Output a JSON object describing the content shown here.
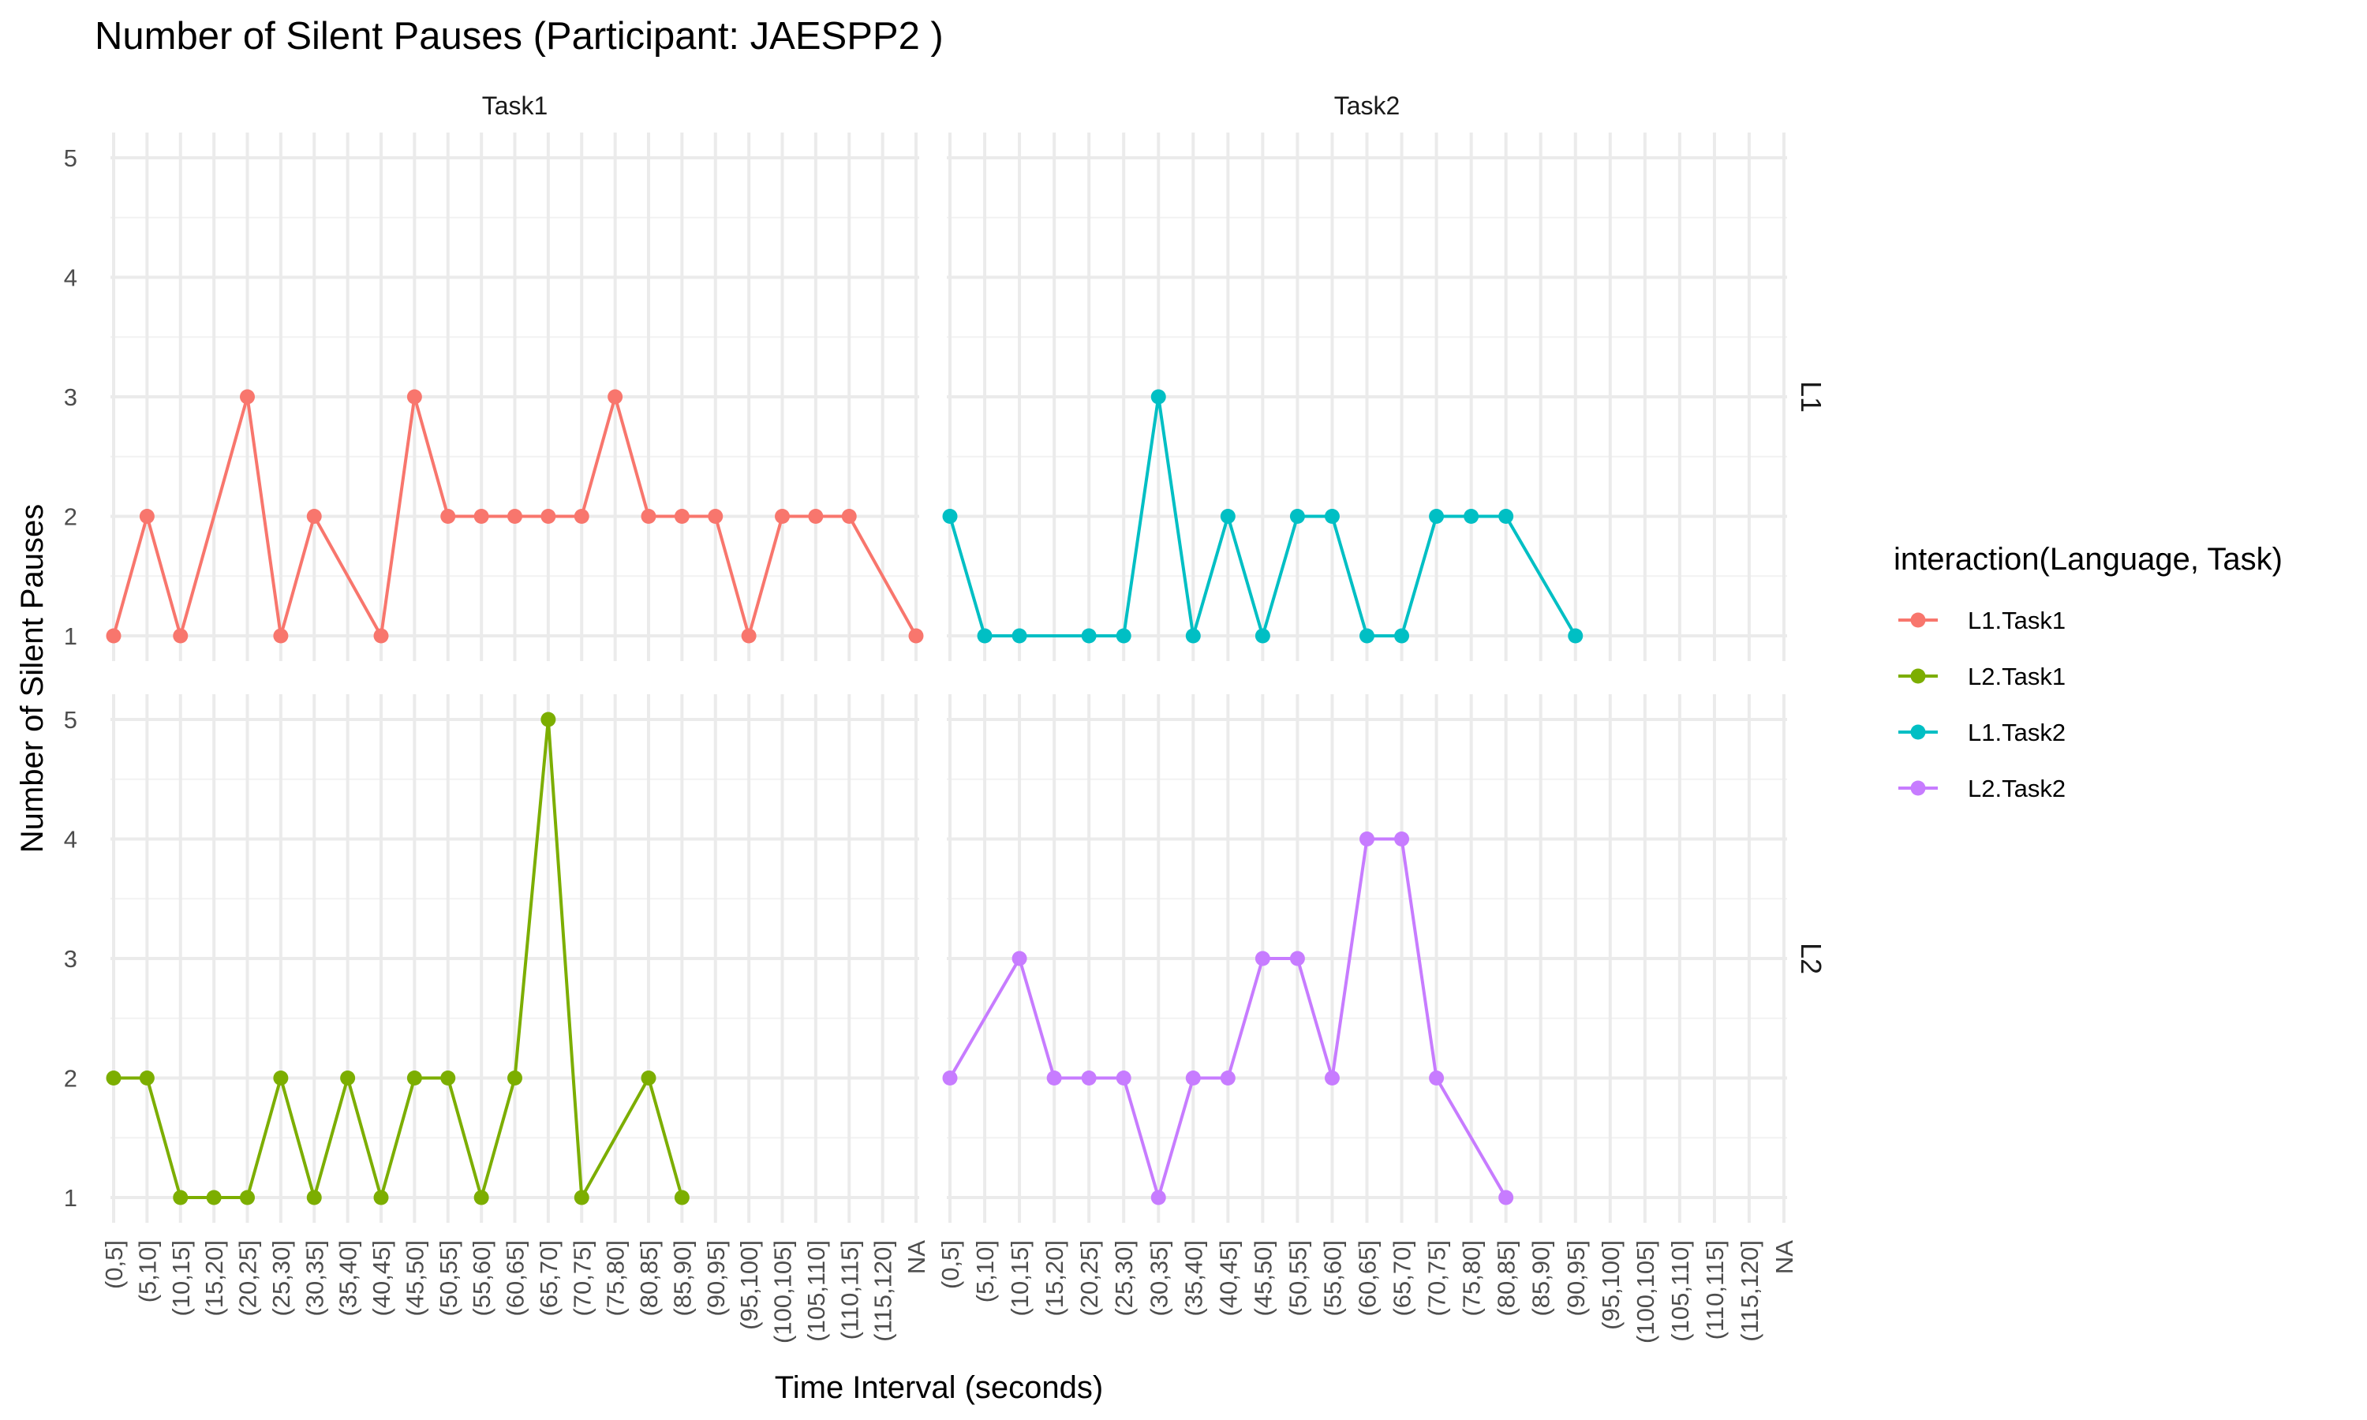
{
  "chart_data": {
    "type": "line",
    "title": "Number of Silent Pauses (Participant: JAESPP2 )",
    "xlabel": "Time Interval (seconds)",
    "ylabel": "Number of Silent Pauses",
    "categories": [
      "(0,5]",
      "(5,10]",
      "(10,15]",
      "(15,20]",
      "(20,25]",
      "(25,30]",
      "(30,35]",
      "(35,40]",
      "(40,45]",
      "(45,50]",
      "(50,55]",
      "(55,60]",
      "(60,65]",
      "(65,70]",
      "(70,75]",
      "(75,80]",
      "(80,85]",
      "(85,90]",
      "(90,95]",
      "(95,100]",
      "(100,105]",
      "(105,110]",
      "(110,115]",
      "(115,120]",
      "NA"
    ],
    "yticks": [
      1,
      2,
      3,
      4,
      5
    ],
    "ylim": [
      1,
      5
    ],
    "grid": true,
    "legend": {
      "title": "interaction(Language, Task)",
      "position": "right",
      "entries": [
        "L1.Task1",
        "L2.Task1",
        "L1.Task2",
        "L2.Task2"
      ]
    },
    "facet_cols": [
      "Task1",
      "Task2"
    ],
    "facet_rows": [
      "L1",
      "L2"
    ],
    "series": [
      {
        "name": "L1.Task1",
        "facet_col": "Task1",
        "facet_row": "L1",
        "color": "#F8766D",
        "points": [
          [
            "(0,5]",
            1
          ],
          [
            "(5,10]",
            2
          ],
          [
            "(10,15]",
            1
          ],
          [
            "(20,25]",
            3
          ],
          [
            "(25,30]",
            1
          ],
          [
            "(30,35]",
            2
          ],
          [
            "(40,45]",
            1
          ],
          [
            "(45,50]",
            3
          ],
          [
            "(50,55]",
            2
          ],
          [
            "(55,60]",
            2
          ],
          [
            "(60,65]",
            2
          ],
          [
            "(65,70]",
            2
          ],
          [
            "(70,75]",
            2
          ],
          [
            "(75,80]",
            3
          ],
          [
            "(80,85]",
            2
          ],
          [
            "(85,90]",
            2
          ],
          [
            "(90,95]",
            2
          ],
          [
            "(95,100]",
            1
          ],
          [
            "(100,105]",
            2
          ],
          [
            "(105,110]",
            2
          ],
          [
            "(110,115]",
            2
          ],
          [
            "NA",
            1
          ]
        ]
      },
      {
        "name": "L2.Task1",
        "facet_col": "Task1",
        "facet_row": "L2",
        "color": "#7CAE00",
        "points": [
          [
            "(0,5]",
            2
          ],
          [
            "(5,10]",
            2
          ],
          [
            "(10,15]",
            1
          ],
          [
            "(15,20]",
            1
          ],
          [
            "(20,25]",
            1
          ],
          [
            "(25,30]",
            2
          ],
          [
            "(30,35]",
            1
          ],
          [
            "(35,40]",
            2
          ],
          [
            "(40,45]",
            1
          ],
          [
            "(45,50]",
            2
          ],
          [
            "(50,55]",
            2
          ],
          [
            "(55,60]",
            1
          ],
          [
            "(60,65]",
            2
          ],
          [
            "(65,70]",
            5
          ],
          [
            "(70,75]",
            1
          ],
          [
            "(80,85]",
            2
          ],
          [
            "(85,90]",
            1
          ]
        ]
      },
      {
        "name": "L1.Task2",
        "facet_col": "Task2",
        "facet_row": "L1",
        "color": "#00BFC4",
        "points": [
          [
            "(0,5]",
            2
          ],
          [
            "(5,10]",
            1
          ],
          [
            "(10,15]",
            1
          ],
          [
            "(20,25]",
            1
          ],
          [
            "(25,30]",
            1
          ],
          [
            "(30,35]",
            3
          ],
          [
            "(35,40]",
            1
          ],
          [
            "(40,45]",
            2
          ],
          [
            "(45,50]",
            1
          ],
          [
            "(50,55]",
            2
          ],
          [
            "(55,60]",
            2
          ],
          [
            "(60,65]",
            1
          ],
          [
            "(65,70]",
            1
          ],
          [
            "(70,75]",
            2
          ],
          [
            "(75,80]",
            2
          ],
          [
            "(80,85]",
            2
          ],
          [
            "(90,95]",
            1
          ]
        ]
      },
      {
        "name": "L2.Task2",
        "facet_col": "Task2",
        "facet_row": "L2",
        "color": "#C77CFF",
        "points": [
          [
            "(0,5]",
            2
          ],
          [
            "(10,15]",
            3
          ],
          [
            "(15,20]",
            2
          ],
          [
            "(20,25]",
            2
          ],
          [
            "(25,30]",
            2
          ],
          [
            "(30,35]",
            1
          ],
          [
            "(35,40]",
            2
          ],
          [
            "(40,45]",
            2
          ],
          [
            "(45,50]",
            3
          ],
          [
            "(50,55]",
            3
          ],
          [
            "(55,60]",
            2
          ],
          [
            "(60,65]",
            4
          ],
          [
            "(65,70]",
            4
          ],
          [
            "(70,75]",
            2
          ],
          [
            "(80,85]",
            1
          ]
        ]
      }
    ]
  }
}
